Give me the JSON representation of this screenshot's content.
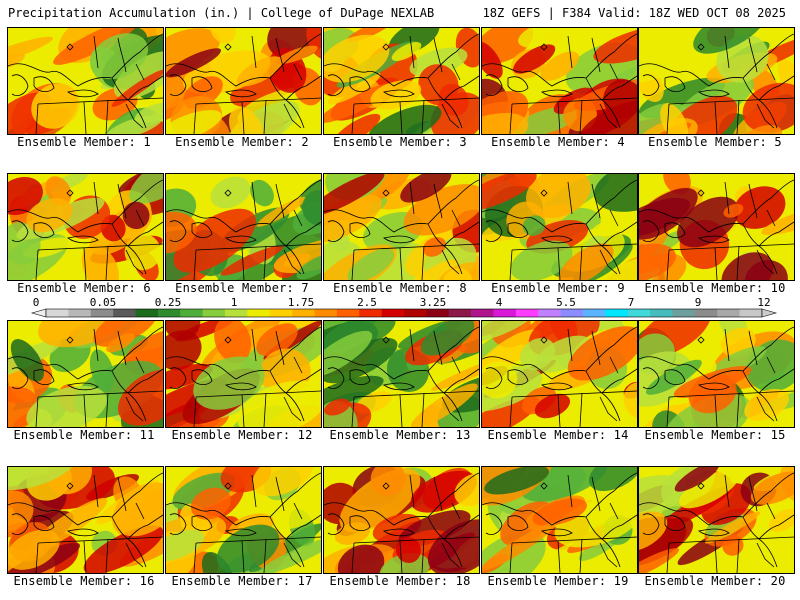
{
  "header": {
    "title_left": "Precipitation Accumulation (in.) | College of DuPage NEXLAB",
    "title_right": "18Z GEFS | F384 Valid: 18Z WED OCT 08 2025"
  },
  "panels": [
    {
      "label": "Ensemble Member: 1"
    },
    {
      "label": "Ensemble Member: 2"
    },
    {
      "label": "Ensemble Member: 3"
    },
    {
      "label": "Ensemble Member: 4"
    },
    {
      "label": "Ensemble Member: 5"
    },
    {
      "label": "Ensemble Member: 6"
    },
    {
      "label": "Ensemble Member: 7"
    },
    {
      "label": "Ensemble Member: 8"
    },
    {
      "label": "Ensemble Member: 9"
    },
    {
      "label": "Ensemble Member: 10"
    },
    {
      "label": "Ensemble Member: 11"
    },
    {
      "label": "Ensemble Member: 12"
    },
    {
      "label": "Ensemble Member: 13"
    },
    {
      "label": "Ensemble Member: 14"
    },
    {
      "label": "Ensemble Member: 15"
    },
    {
      "label": "Ensemble Member: 16"
    },
    {
      "label": "Ensemble Member: 17"
    },
    {
      "label": "Ensemble Member: 18"
    },
    {
      "label": "Ensemble Member: 19"
    },
    {
      "label": "Ensemble Member: 20"
    }
  ],
  "legend": {
    "tick_labels": [
      "0",
      "0.05",
      "0.25",
      "1",
      "1.75",
      "2.5",
      "3.25",
      "4",
      "5.5",
      "7",
      "9",
      "12"
    ],
    "colors": [
      "#d8d8d8",
      "#b8b8b8",
      "#8c8c8c",
      "#5a5a5a",
      "#1d6b1d",
      "#2e8b2e",
      "#4fae3a",
      "#86cc3c",
      "#b8e03c",
      "#ecec00",
      "#ffd000",
      "#ffb000",
      "#ff8c00",
      "#ff6000",
      "#ee2a00",
      "#d40000",
      "#b00000",
      "#8b0014",
      "#8b1a4a",
      "#b0148c",
      "#d81ad8",
      "#ff3cff",
      "#c080ff",
      "#8c8cff",
      "#5ab4ff",
      "#00e6ff",
      "#40d8d8",
      "#46bcbc",
      "#6e9e9e",
      "#8c8c8c",
      "#a8a8a8",
      "#c8c8c8"
    ]
  }
}
